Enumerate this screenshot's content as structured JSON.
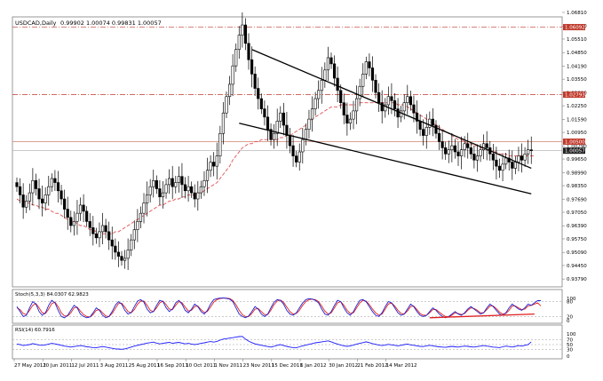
{
  "chart_data": {
    "type": "candlestick",
    "symbol_header": "USDCAD,Daily",
    "ohlc_header": "0.99902 1.00074 0.99831 1.00057",
    "price_axis": {
      "ylim": [
        0.9345,
        1.0655
      ],
      "ticks": [
        "1.06810",
        "1.06150",
        "1.05510",
        "1.04850",
        "1.04190",
        "1.03550",
        "1.02890",
        "1.02250",
        "1.01590",
        "1.00950",
        "1.00290",
        "0.99650",
        "0.98990",
        "0.98350",
        "0.97690",
        "0.97050",
        "0.96390",
        "0.95750",
        "0.95090",
        "0.94450",
        "0.93790"
      ],
      "tick_values": [
        1.0681,
        1.0615,
        1.0551,
        1.0485,
        1.0419,
        1.0355,
        1.0289,
        1.0225,
        1.0159,
        1.0095,
        1.0029,
        0.9965,
        0.9899,
        0.9835,
        0.9769,
        0.9705,
        0.9639,
        0.9575,
        0.9509,
        0.9445,
        0.9379
      ],
      "highlighted_labels": [
        {
          "text": "1.06092",
          "value": 1.06092,
          "color": "#c0392b"
        },
        {
          "text": "1.02793",
          "value": 1.02793,
          "color": "#c0392b"
        },
        {
          "text": "1.00500",
          "value": 1.005,
          "color": "#c0392b"
        },
        {
          "text": "1.00057",
          "value": 1.00057,
          "color": "#222222"
        }
      ]
    },
    "horizontal_levels": [
      {
        "value": 1.06092,
        "color": "#c0392b",
        "style": "dashdot"
      },
      {
        "value": 1.02793,
        "color": "#c0392b",
        "style": "dashdot"
      },
      {
        "value": 1.005,
        "color": "#d08070",
        "style": "solid"
      },
      {
        "value": 1.00057,
        "color": "#aaaaaa",
        "style": "solid"
      }
    ],
    "x_ticks": [
      "27 May 2011",
      "20 Jun 2011",
      "12 Jul 2011",
      "3 Aug 2011",
      "25 Aug 2011",
      "16 Sep 2011",
      "10 Oct 2011",
      "1 Nov 2011",
      "23 Nov 2011",
      "15 Dec 2011",
      "6 Jan 2012",
      "30 Jan 2012",
      "21 Feb 2012",
      "14 Mar 2012"
    ],
    "close": [
      0.983,
      0.979,
      0.973,
      0.976,
      0.98,
      0.986,
      0.982,
      0.977,
      0.975,
      0.979,
      0.983,
      0.987,
      0.985,
      0.981,
      0.977,
      0.972,
      0.968,
      0.964,
      0.966,
      0.97,
      0.974,
      0.971,
      0.966,
      0.963,
      0.96,
      0.958,
      0.961,
      0.964,
      0.961,
      0.957,
      0.954,
      0.951,
      0.949,
      0.947,
      0.948,
      0.952,
      0.957,
      0.962,
      0.966,
      0.97,
      0.975,
      0.979,
      0.983,
      0.986,
      0.982,
      0.978,
      0.98,
      0.984,
      0.987,
      0.983,
      0.985,
      0.988,
      0.984,
      0.981,
      0.983,
      0.98,
      0.977,
      0.98,
      0.983,
      0.986,
      0.991,
      0.995,
      0.993,
      0.998,
      1.009,
      1.019,
      1.027,
      1.033,
      1.042,
      1.05,
      1.057,
      1.062,
      1.053,
      1.045,
      1.038,
      1.031,
      1.026,
      1.021,
      1.017,
      1.011,
      1.006,
      1.009,
      1.015,
      1.019,
      1.013,
      1.008,
      1.003,
      0.998,
      0.995,
      1.0,
      1.006,
      1.011,
      1.016,
      1.021,
      1.026,
      1.03,
      1.035,
      1.04,
      1.046,
      1.043,
      1.036,
      1.03,
      1.024,
      1.018,
      1.014,
      1.016,
      1.02,
      1.026,
      1.032,
      1.038,
      1.044,
      1.041,
      1.035,
      1.029,
      1.024,
      1.02,
      1.023,
      1.027,
      1.025,
      1.021,
      1.017,
      1.02,
      1.024,
      1.027,
      1.023,
      1.019,
      1.015,
      1.011,
      1.008,
      1.012,
      1.016,
      1.013,
      1.009,
      1.005,
      1.002,
      0.999,
      1.001,
      1.003,
      1.0,
      0.998,
      1.001,
      1.004,
      1.002,
      0.999,
      0.996,
      0.998,
      1.001,
      1.004,
      1.002,
      0.999,
      0.996,
      0.993,
      0.991,
      0.994,
      0.997,
      0.995,
      0.992,
      0.995,
      0.998,
      0.996,
      0.999,
      1.001,
      1.0006
    ],
    "moving_average": {
      "color": "#e05050",
      "style": "dashed",
      "values": [
        0.977,
        0.976,
        0.976,
        0.975,
        0.975,
        0.974,
        0.974,
        0.973,
        0.973,
        0.972,
        0.972,
        0.971,
        0.97,
        0.97,
        0.969,
        0.968,
        0.967,
        0.967,
        0.966,
        0.965,
        0.964,
        0.964,
        0.963,
        0.962,
        0.962,
        0.961,
        0.961,
        0.96,
        0.96,
        0.96,
        0.96,
        0.961,
        0.961,
        0.962,
        0.963,
        0.964,
        0.965,
        0.966,
        0.967,
        0.968,
        0.969,
        0.97,
        0.971,
        0.972,
        0.973,
        0.974,
        0.974,
        0.975,
        0.976,
        0.976,
        0.977,
        0.977,
        0.978,
        0.978,
        0.979,
        0.979,
        0.979,
        0.98,
        0.98,
        0.981,
        0.982,
        0.983,
        0.984,
        0.985,
        0.987,
        0.989,
        0.991,
        0.993,
        0.996,
        0.998,
        1.0,
        1.002,
        1.003,
        1.004,
        1.004,
        1.005,
        1.005,
        1.006,
        1.006,
        1.006,
        1.006,
        1.006,
        1.006,
        1.007,
        1.007,
        1.008,
        1.008,
        1.009,
        1.01,
        1.011,
        1.012,
        1.013,
        1.014,
        1.016,
        1.017,
        1.018,
        1.019,
        1.02,
        1.021,
        1.022,
        1.022,
        1.022,
        1.023,
        1.023,
        1.023,
        1.023,
        1.023,
        1.023,
        1.024,
        1.024,
        1.024,
        1.024,
        1.024,
        1.024,
        1.024,
        1.024,
        1.024,
        1.024,
        1.024,
        1.024,
        1.023,
        1.023,
        1.023,
        1.022,
        1.021,
        1.02,
        1.019,
        1.018,
        1.017,
        1.016,
        1.015,
        1.014,
        1.013,
        1.012,
        1.011,
        1.01,
        1.009,
        1.008,
        1.007,
        1.006,
        1.006,
        1.005,
        1.004,
        1.004,
        1.003,
        1.003,
        1.002,
        1.002,
        1.001,
        1.001,
        1.0,
        1.0,
        0.999,
        0.999,
        0.999,
        0.998,
        0.998,
        0.998,
        0.998,
        0.998,
        0.998,
        0.998,
        0.998,
        0.998
      ]
    },
    "trendlines": [
      {
        "points": [
          [
            74,
            1.05
          ],
          [
            162,
            0.992
          ]
        ]
      },
      {
        "points": [
          [
            70,
            1.014
          ],
          [
            162,
            0.9795
          ]
        ]
      }
    ],
    "stochastic": {
      "header": "Stoch(5,3,3) 84.0307 62.9823",
      "ylim": [
        0,
        100
      ],
      "levels": [
        "80",
        "20"
      ],
      "top_label": "100",
      "bottom_label": "0",
      "main": [
        60,
        40,
        20,
        25,
        55,
        80,
        70,
        40,
        25,
        35,
        65,
        85,
        75,
        45,
        20,
        15,
        25,
        45,
        65,
        55,
        30,
        20,
        15,
        18,
        35,
        55,
        45,
        25,
        15,
        20,
        40,
        65,
        80,
        70,
        45,
        30,
        35,
        60,
        82,
        88,
        78,
        50,
        35,
        40,
        65,
        85,
        80,
        55,
        40,
        50,
        75,
        85,
        70,
        45,
        35,
        50,
        70,
        60,
        40,
        30,
        45,
        70,
        88,
        92,
        94,
        95,
        93,
        90,
        80,
        55,
        30,
        20,
        15,
        22,
        40,
        60,
        50,
        30,
        20,
        30,
        55,
        78,
        88,
        85,
        70,
        45,
        30,
        25,
        35,
        55,
        75,
        88,
        92,
        90,
        85,
        75,
        50,
        30,
        25,
        40,
        65,
        85,
        80,
        55,
        35,
        25,
        40,
        65,
        85,
        88,
        80,
        60,
        40,
        25,
        20,
        35,
        60,
        80,
        75,
        55,
        35,
        25,
        30,
        50,
        70,
        60,
        40,
        25,
        20,
        25,
        40,
        55,
        45,
        30,
        20,
        15,
        20,
        30,
        40,
        30,
        25,
        35,
        50,
        60,
        50,
        40,
        30,
        35,
        55,
        70,
        60,
        45,
        30,
        25,
        35,
        55,
        70,
        60,
        50,
        45,
        55,
        70,
        65,
        75,
        84,
        84
      ],
      "signal": [
        55,
        48,
        32,
        28,
        45,
        65,
        72,
        55,
        35,
        32,
        50,
        72,
        78,
        60,
        35,
        22,
        22,
        35,
        55,
        58,
        42,
        28,
        20,
        18,
        28,
        45,
        48,
        35,
        22,
        20,
        32,
        52,
        72,
        74,
        58,
        40,
        35,
        48,
        70,
        82,
        82,
        65,
        45,
        40,
        55,
        75,
        82,
        68,
        50,
        48,
        65,
        80,
        76,
        58,
        42,
        45,
        60,
        62,
        48,
        36,
        40,
        58,
        78,
        88,
        92,
        94,
        94,
        92,
        85,
        68,
        45,
        28,
        20,
        20,
        32,
        50,
        52,
        40,
        28,
        28,
        45,
        68,
        82,
        86,
        78,
        58,
        40,
        30,
        32,
        45,
        65,
        80,
        88,
        90,
        88,
        80,
        62,
        42,
        30,
        35,
        55,
        75,
        80,
        65,
        45,
        32,
        35,
        55,
        75,
        85,
        82,
        68,
        50,
        35,
        25,
        30,
        50,
        70,
        75,
        62,
        45,
        32,
        30,
        42,
        60,
        62,
        48,
        32,
        25,
        25,
        35,
        48,
        48,
        38,
        28,
        20,
        20,
        25,
        35,
        32,
        28,
        32,
        45,
        55,
        52,
        45,
        35,
        35,
        48,
        62,
        62,
        52,
        38,
        30,
        32,
        45,
        62,
        62,
        55,
        48,
        50,
        62,
        65,
        70,
        75,
        63
      ]
    },
    "rsi": {
      "header": "RSI(14) 60.7916",
      "ylim": [
        0,
        100
      ],
      "levels": [
        "70",
        "50",
        "30"
      ],
      "top_label": "100",
      "bottom_label": "0",
      "values": [
        52,
        50,
        46,
        48,
        50,
        54,
        51,
        48,
        47,
        49,
        52,
        55,
        53,
        50,
        47,
        44,
        42,
        40,
        42,
        44,
        46,
        44,
        41,
        40,
        38,
        37,
        40,
        42,
        40,
        37,
        35,
        33,
        32,
        31,
        33,
        36,
        40,
        44,
        47,
        50,
        53,
        56,
        58,
        60,
        56,
        53,
        55,
        57,
        59,
        55,
        57,
        59,
        56,
        53,
        55,
        52,
        50,
        52,
        55,
        57,
        60,
        62,
        60,
        63,
        68,
        72,
        74,
        76,
        78,
        80,
        82,
        83,
        72,
        64,
        58,
        53,
        50,
        47,
        45,
        42,
        40,
        43,
        47,
        50,
        46,
        43,
        40,
        38,
        37,
        41,
        45,
        48,
        51,
        54,
        57,
        59,
        61,
        63,
        65,
        61,
        56,
        52,
        48,
        45,
        43,
        45,
        48,
        52,
        55,
        58,
        61,
        58,
        54,
        51,
        48,
        46,
        48,
        51,
        49,
        47,
        45,
        47,
        50,
        52,
        49,
        47,
        45,
        43,
        42,
        45,
        47,
        45,
        43,
        41,
        40,
        39,
        41,
        43,
        41,
        40,
        42,
        44,
        43,
        41,
        40,
        42,
        44,
        46,
        44,
        42,
        40,
        39,
        38,
        41,
        44,
        42,
        40,
        43,
        46,
        44,
        47,
        50,
        61
      ]
    }
  }
}
